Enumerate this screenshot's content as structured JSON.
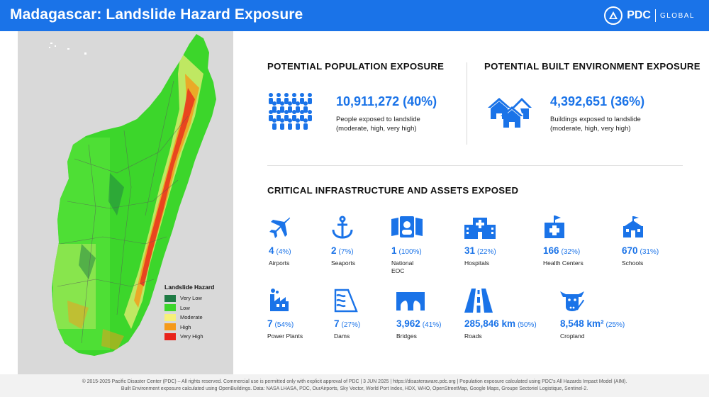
{
  "header": {
    "title": "Madagascar: Landslide Hazard Exposure",
    "logo_text": "PDC",
    "logo_sub": "GLOBAL"
  },
  "legend": {
    "title": "Landslide Hazard",
    "items": [
      {
        "label": "Very Low",
        "color": "#1e7b44"
      },
      {
        "label": "Low",
        "color": "#3cd62b"
      },
      {
        "label": "Moderate",
        "color": "#f6f07a"
      },
      {
        "label": "High",
        "color": "#f59a1a"
      },
      {
        "label": "Very High",
        "color": "#e8231b"
      }
    ]
  },
  "population": {
    "title": "POTENTIAL POPULATION EXPOSURE",
    "value": "10,911,272 (40%)",
    "desc_line1": "People exposed to landslide",
    "desc_line2": "(moderate, high, very high)"
  },
  "built": {
    "title": "POTENTIAL BUILT ENVIRONMENT EXPOSURE",
    "value": "4,392,651 (36%)",
    "desc_line1": "Buildings exposed to landslide",
    "desc_line2": "(moderate, high, very high)"
  },
  "infra": {
    "title": "CRITICAL INFRASTRUCTURE AND ASSETS EXPOSED",
    "assets": [
      {
        "icon": "airplane-icon",
        "value": "4",
        "pct": "(4%)",
        "label": "Airports"
      },
      {
        "icon": "anchor-icon",
        "value": "2",
        "pct": "(7%)",
        "label": "Seaports"
      },
      {
        "icon": "eoc-icon",
        "value": "1",
        "pct": "(100%)",
        "label": "National EOC"
      },
      {
        "icon": "hospital-icon",
        "value": "31",
        "pct": "(22%)",
        "label": "Hospitals"
      },
      {
        "icon": "health-center-icon",
        "value": "166",
        "pct": "(32%)",
        "label": "Health Centers"
      },
      {
        "icon": "school-icon",
        "value": "670",
        "pct": "(31%)",
        "label": "Schools"
      },
      {
        "icon": "power-plant-icon",
        "value": "7",
        "pct": "(54%)",
        "label": "Power Plants"
      },
      {
        "icon": "dam-icon",
        "value": "7",
        "pct": "(27%)",
        "label": "Dams"
      },
      {
        "icon": "bridge-icon",
        "value": "3,962",
        "pct": "(41%)",
        "label": "Bridges"
      },
      {
        "icon": "road-icon",
        "value": "285,846 km",
        "pct": "(50%)",
        "label": "Roads"
      },
      {
        "icon": "cropland-icon",
        "value": "8,548 km²",
        "pct": "(25%)",
        "label": "Cropland"
      }
    ]
  },
  "footer": {
    "line1": "© 2015-2025 Pacific Disaster Center (PDC) – All rights reserved. Commercial use is permitted only with explicit approval of PDC | 3 JUN 2025 | https://disasteraware.pdc.org | Population exposure calculated using PDC's All Hazards Impact Model (AIM).",
    "line2": "Built Environment exposure calculated using OpenBuildings. Data: NASA LHASA, PDC, OurAirports, Sky Vector, World Port Index, HDX, WHO, OpenStreetMap, Google Maps, Groupe Sectoriel Logistique, Sentinel-2."
  },
  "colors": {
    "accent": "#1a73e8"
  }
}
